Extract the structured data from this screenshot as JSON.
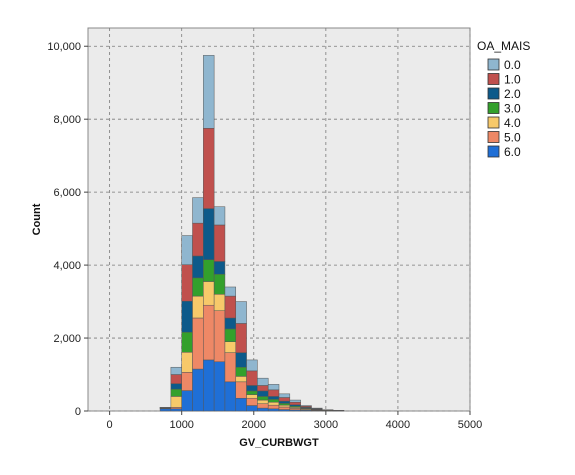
{
  "chart_data": {
    "type": "bar",
    "stacked": true,
    "title": "",
    "xlabel": "GV_CURBWGT",
    "ylabel": "Count",
    "xlim": [
      -300,
      5000
    ],
    "ylim": [
      0,
      10500
    ],
    "x_ticks": [
      0,
      1000,
      2000,
      3000,
      4000,
      5000
    ],
    "x_tick_labels": [
      "0",
      "1000",
      "2000",
      "3000",
      "4000",
      "5000"
    ],
    "y_ticks": [
      0,
      2000,
      4000,
      6000,
      8000,
      10000
    ],
    "y_tick_labels": [
      "0",
      "2,000",
      "4,000",
      "6,000",
      "8,000",
      "10,000"
    ],
    "grid": true,
    "legend_title": "OA_MAIS",
    "legend_position": "right",
    "bin_width": 150,
    "bins": [
      775,
      925,
      1075,
      1225,
      1375,
      1525,
      1675,
      1825,
      1975,
      2125,
      2275,
      2425,
      2575,
      2725,
      2875,
      3025,
      3175
    ],
    "series": [
      {
        "name": "6.0",
        "color": "#1f6fd6",
        "values": [
          60,
          60,
          560,
          1150,
          1400,
          1350,
          800,
          350,
          150,
          80,
          60,
          40,
          30,
          20,
          10,
          5,
          3
        ]
      },
      {
        "name": "5.0",
        "color": "#ee8866",
        "values": [
          15,
          40,
          500,
          1400,
          1500,
          1400,
          800,
          450,
          200,
          120,
          100,
          70,
          40,
          20,
          10,
          5,
          3
        ]
      },
      {
        "name": "4.0",
        "color": "#f7c96a",
        "values": [
          10,
          300,
          550,
          600,
          650,
          450,
          300,
          150,
          100,
          100,
          80,
          50,
          30,
          20,
          10,
          5,
          2
        ]
      },
      {
        "name": "3.0",
        "color": "#33a02c",
        "values": [
          5,
          200,
          550,
          500,
          600,
          550,
          350,
          250,
          100,
          100,
          80,
          50,
          30,
          20,
          10,
          5,
          2
        ]
      },
      {
        "name": "2.0",
        "color": "#0d5a8a",
        "values": [
          3,
          150,
          850,
          600,
          1400,
          350,
          300,
          400,
          150,
          150,
          80,
          60,
          40,
          20,
          10,
          5,
          2
        ]
      },
      {
        "name": "1.0",
        "color": "#c0504d",
        "values": [
          2,
          250,
          1000,
          900,
          2200,
          1000,
          600,
          800,
          400,
          150,
          180,
          100,
          70,
          30,
          15,
          5,
          3
        ]
      },
      {
        "name": "0.0",
        "color": "#8fb6cf",
        "values": [
          5,
          200,
          800,
          700,
          2000,
          500,
          250,
          600,
          300,
          200,
          150,
          100,
          60,
          20,
          15,
          5,
          2
        ]
      }
    ],
    "legend_order": [
      "0.0",
      "1.0",
      "2.0",
      "3.0",
      "4.0",
      "5.0",
      "6.0"
    ]
  }
}
